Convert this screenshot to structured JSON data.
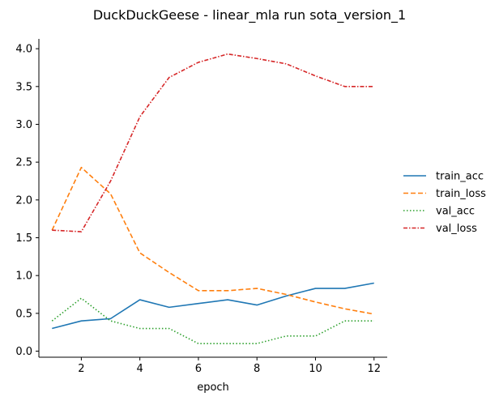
{
  "chart_data": {
    "type": "line",
    "title": "DuckDuckGeese - linear_mla run sota_version_1",
    "xlabel": "epoch",
    "ylabel": "",
    "x": [
      1,
      2,
      3,
      4,
      5,
      6,
      7,
      8,
      9,
      10,
      11,
      12
    ],
    "xticks": [
      "2",
      "4",
      "6",
      "8",
      "10",
      "12"
    ],
    "yticks": [
      "0.0",
      "0.5",
      "1.0",
      "1.5",
      "2.0",
      "2.5",
      "3.0",
      "3.5",
      "4.0"
    ],
    "xlim": [
      0.55,
      12.45
    ],
    "ylim": [
      -0.08,
      4.13
    ],
    "grid": false,
    "legend_position": "right",
    "series": [
      {
        "name": "train_acc",
        "color": "#1f77b4",
        "dash": "solid",
        "values": [
          0.3,
          0.4,
          0.43,
          0.68,
          0.58,
          0.63,
          0.68,
          0.61,
          0.73,
          0.83,
          0.83,
          0.9
        ]
      },
      {
        "name": "train_loss",
        "color": "#ff7f0e",
        "dash": "dashed",
        "values": [
          1.6,
          2.43,
          2.08,
          1.3,
          1.04,
          0.8,
          0.8,
          0.83,
          0.75,
          0.65,
          0.56,
          0.49
        ]
      },
      {
        "name": "val_acc",
        "color": "#2ca02c",
        "dash": "dotted",
        "values": [
          0.4,
          0.7,
          0.4,
          0.3,
          0.3,
          0.1,
          0.1,
          0.1,
          0.2,
          0.2,
          0.4,
          0.4
        ]
      },
      {
        "name": "val_loss",
        "color": "#d62728",
        "dash": "dashdot",
        "values": [
          1.6,
          1.58,
          2.25,
          3.1,
          3.62,
          3.82,
          3.93,
          3.87,
          3.8,
          3.64,
          3.5,
          3.5
        ]
      }
    ]
  }
}
